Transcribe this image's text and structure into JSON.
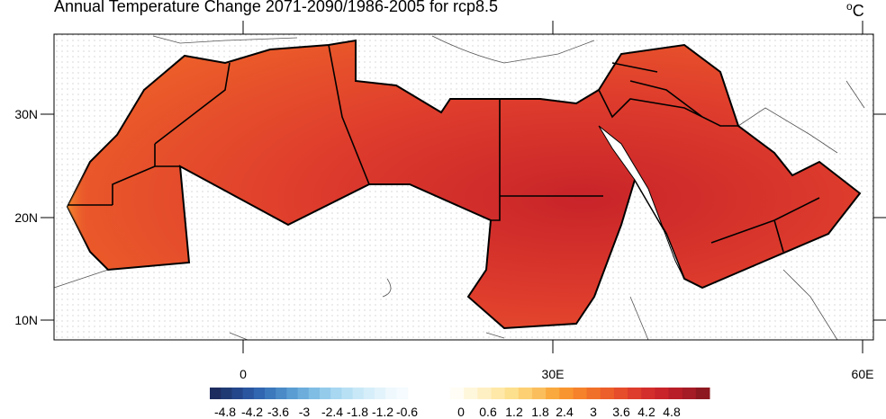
{
  "title": "Annual Temperature Change 2071-2090/1986-2005 for rcp8.5",
  "unit": {
    "degree": "o",
    "letter": "C"
  },
  "lat_ticks": [
    "30N",
    "20N",
    "10N"
  ],
  "lon_ticks": [
    "0",
    "30E",
    "60E"
  ],
  "colorbar": {
    "labels": [
      "-4.8",
      "-4.2",
      "-3.6",
      "-3",
      "-2.4",
      "-1.8",
      "-1.2",
      "-0.6",
      "0",
      "0.6",
      "1.2",
      "1.8",
      "2.4",
      "3",
      "3.6",
      "4.2",
      "4.8"
    ],
    "cool_colors": [
      "#1d2c5e",
      "#203a74",
      "#24468a",
      "#2a56a0",
      "#3166b0",
      "#3c78bc",
      "#4a8ac7",
      "#5a9dd2",
      "#6caddc",
      "#7fbde4",
      "#94cbeb",
      "#a7d7f1",
      "#b8e0f4",
      "#c8e8f7",
      "#d6eef9",
      "#e3f3fb",
      "#eef8fd",
      "#f5fbfe"
    ],
    "warm_colors": [
      "#fffdf5",
      "#fff7dc",
      "#fff0c4",
      "#ffe8a8",
      "#fde08d",
      "#fcd073",
      "#fbbe5d",
      "#f9a93e",
      "#f99530",
      "#f6822c",
      "#f17029",
      "#ec5e2a",
      "#e64d2b",
      "#de3c2c",
      "#d42e2c",
      "#c8242a",
      "#b81e28",
      "#a51b26",
      "#8e1820"
    ]
  }
}
